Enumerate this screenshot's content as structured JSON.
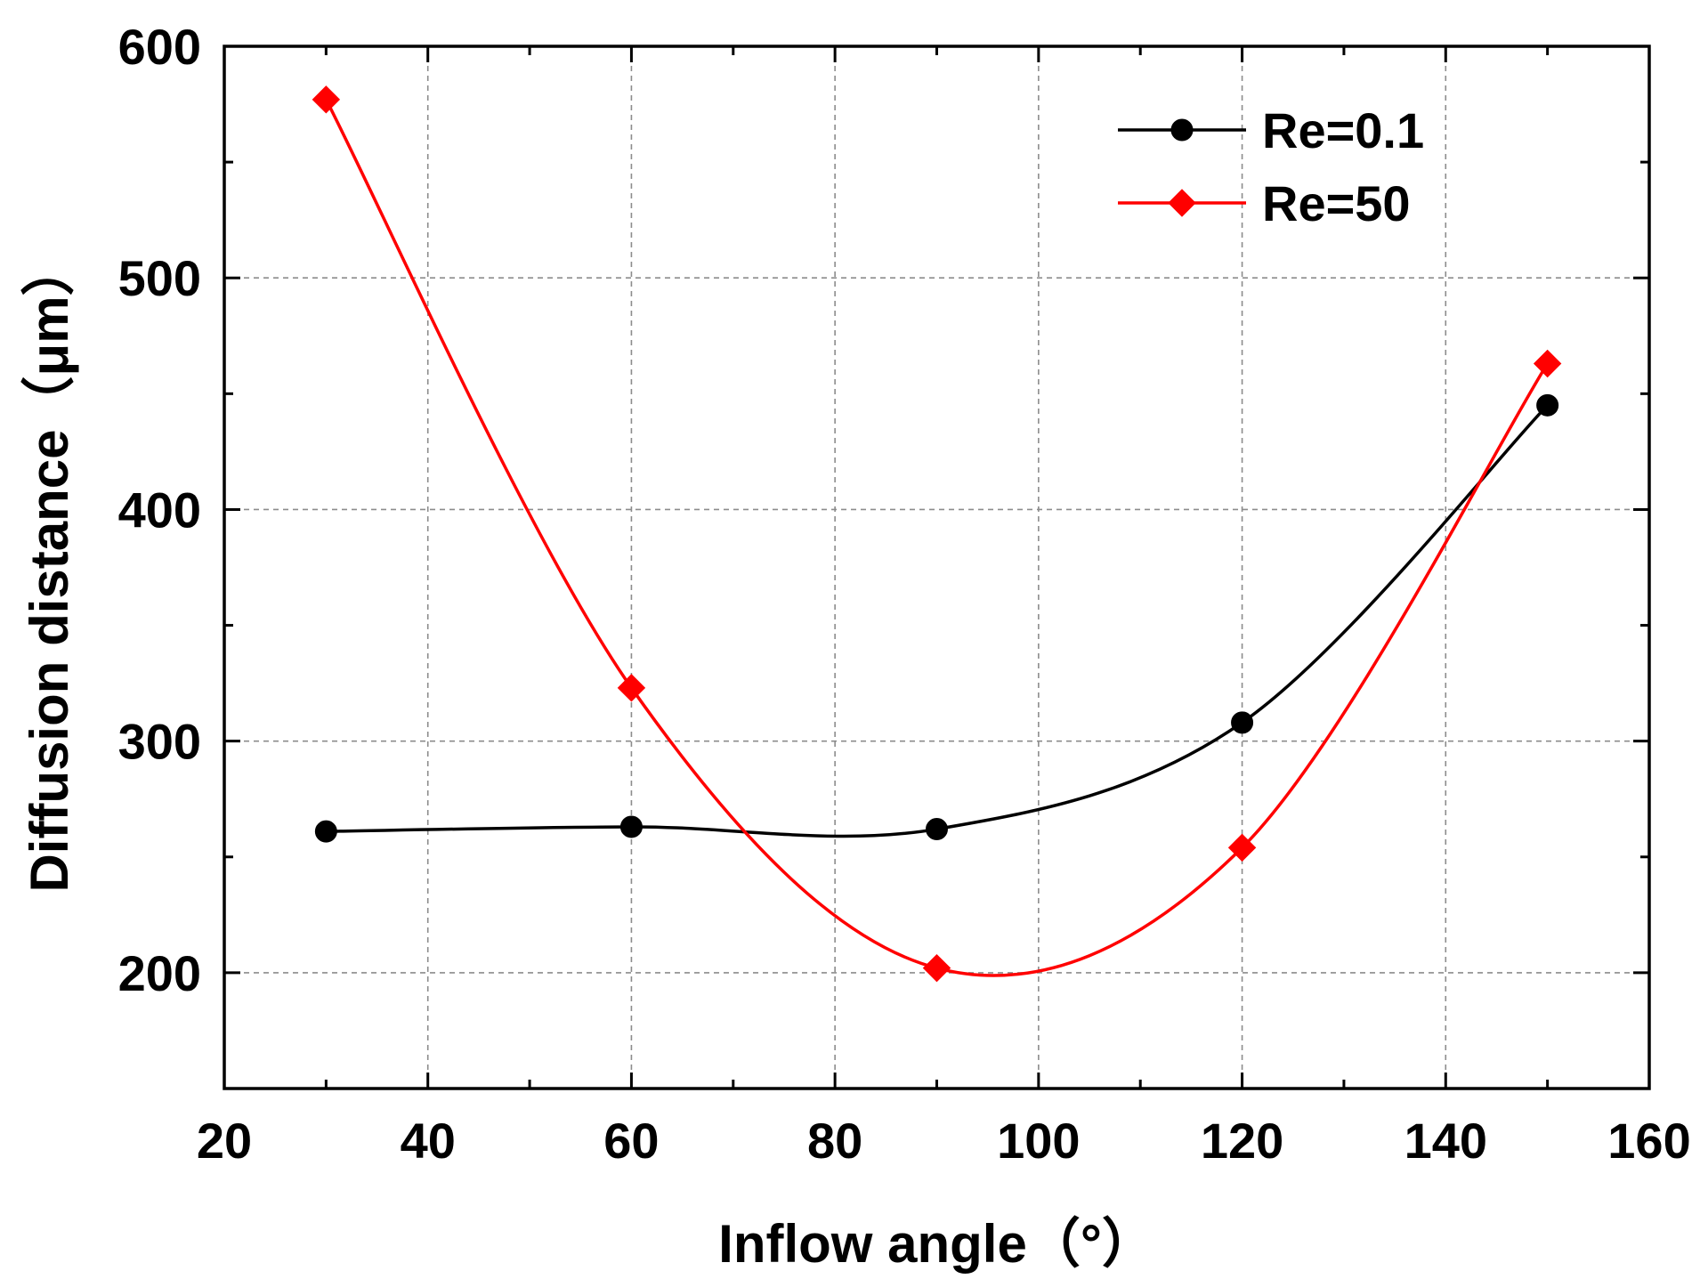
{
  "chart_data": {
    "type": "line",
    "title": "",
    "xlabel": "Inflow angle（°）",
    "ylabel": "Diffusion distance（μm）",
    "xlim": [
      20,
      160
    ],
    "ylim": [
      150,
      600
    ],
    "x_ticks": [
      20,
      40,
      60,
      80,
      100,
      120,
      140,
      160
    ],
    "y_ticks": [
      200,
      300,
      400,
      500,
      600
    ],
    "x_minor_ticks": [
      30,
      50,
      70,
      90,
      110,
      130,
      150
    ],
    "y_minor_ticks": [
      250,
      350,
      450,
      550
    ],
    "grid": true,
    "legend_position": "top-right",
    "series": [
      {
        "name": "Re=0.1",
        "color": "#000000",
        "marker": "circle",
        "x": [
          30,
          60,
          90,
          120,
          150
        ],
        "y": [
          261,
          263,
          262,
          308,
          445
        ]
      },
      {
        "name": "Re=50",
        "color": "#ff0000",
        "marker": "diamond",
        "x": [
          30,
          60,
          90,
          120,
          150
        ],
        "y": [
          577,
          323,
          202,
          254,
          463
        ]
      }
    ]
  }
}
